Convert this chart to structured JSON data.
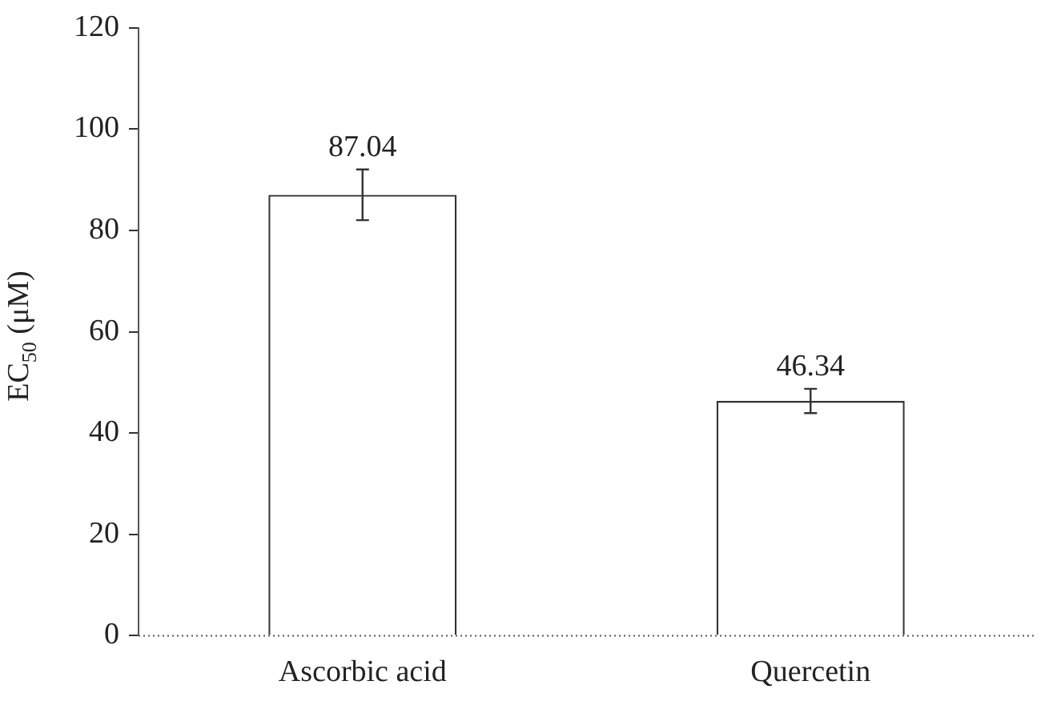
{
  "chart_data": {
    "type": "bar",
    "ylabel": "EC$_{50}$ (μM)",
    "categories": [
      "Ascorbic acid",
      "Quercetin"
    ],
    "values": [
      87.04,
      46.34
    ],
    "color": "#ffffff",
    "errors": [
      5,
      2.4
    ],
    "data_labels": true,
    "ylim": [
      0,
      120
    ],
    "yticks": [
      0,
      20,
      40,
      60,
      80,
      100,
      120
    ],
    "grid": false,
    "legend": false
  }
}
